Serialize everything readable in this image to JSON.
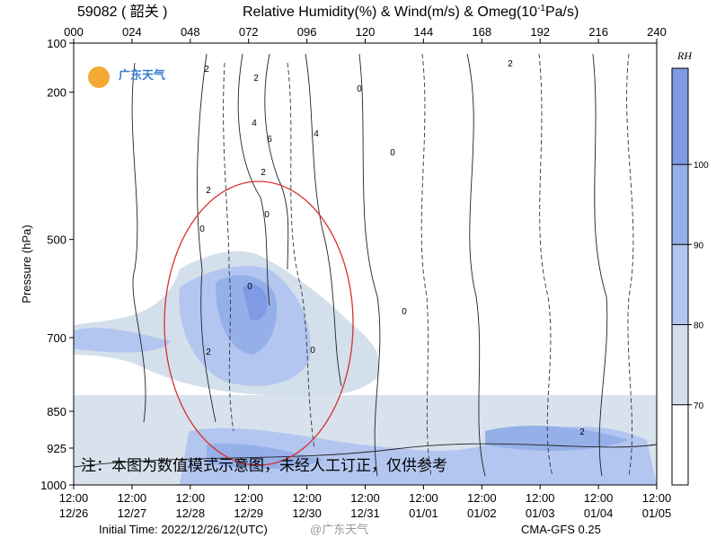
{
  "chart_data": {
    "type": "cross-section",
    "station_label": "59082 ( 韶关 )",
    "title": "Relative Humidity(%) & Wind(m/s) & Omeg(10",
    "title_sup": "-1",
    "title_end": "Pa/s)",
    "ylabel": "Pressure (hPa)",
    "ylim": [
      1000,
      100
    ],
    "yticks": [
      100,
      200,
      500,
      700,
      850,
      925,
      1000
    ],
    "xlim": [
      0,
      240
    ],
    "x2ticks": [
      {
        "value": 0,
        "label": "000"
      },
      {
        "value": 24,
        "label": "024"
      },
      {
        "value": 48,
        "label": "048"
      },
      {
        "value": 72,
        "label": "072"
      },
      {
        "value": 96,
        "label": "096"
      },
      120,
      144,
      168,
      192,
      216,
      240
    ],
    "xticks": [
      {
        "value": 0,
        "label": "12/26"
      },
      {
        "value": 24,
        "label": "12/27"
      },
      {
        "value": 48,
        "label": "12/28"
      },
      {
        "value": 72,
        "label": "12/29"
      },
      {
        "value": 96,
        "label": "12/30"
      },
      {
        "value": 120,
        "label": "12/31"
      },
      {
        "value": 144,
        "label": "01/01"
      },
      {
        "value": 168,
        "label": "01/02"
      },
      {
        "value": 192,
        "label": "01/03"
      },
      {
        "value": 216,
        "label": "01/04"
      },
      {
        "value": 240,
        "label": "01/05"
      }
    ],
    "xtick_times": [
      "12:00",
      "12:00",
      "12:00",
      "12:00",
      "12:00",
      "12:00",
      "12:00",
      "12:00",
      "12:00",
      "12:00",
      "12:00"
    ],
    "colorbar": {
      "label": "RH",
      "lim": [
        60,
        112
      ],
      "ticks": [
        70,
        80,
        90,
        100
      ],
      "colors": [
        "#ffffff",
        "#d3dfeb",
        "#b3c6ef",
        "#95afe9",
        "#7f9be6"
      ]
    },
    "contour_labels": [
      "2",
      "2",
      "4",
      "6",
      "2",
      "0",
      "2",
      "0",
      "0",
      "2",
      "0",
      "0",
      "4",
      "0",
      "2",
      "0",
      "2"
    ],
    "logo": "广东天气",
    "note": "注：本图为数值模式示意图，未经人工订正，仅供参考",
    "initial_time": "Initial Time: 2022/12/26/12(UTC)",
    "model": "CMA-GFS 0.25",
    "watermark": "@广东天气"
  }
}
